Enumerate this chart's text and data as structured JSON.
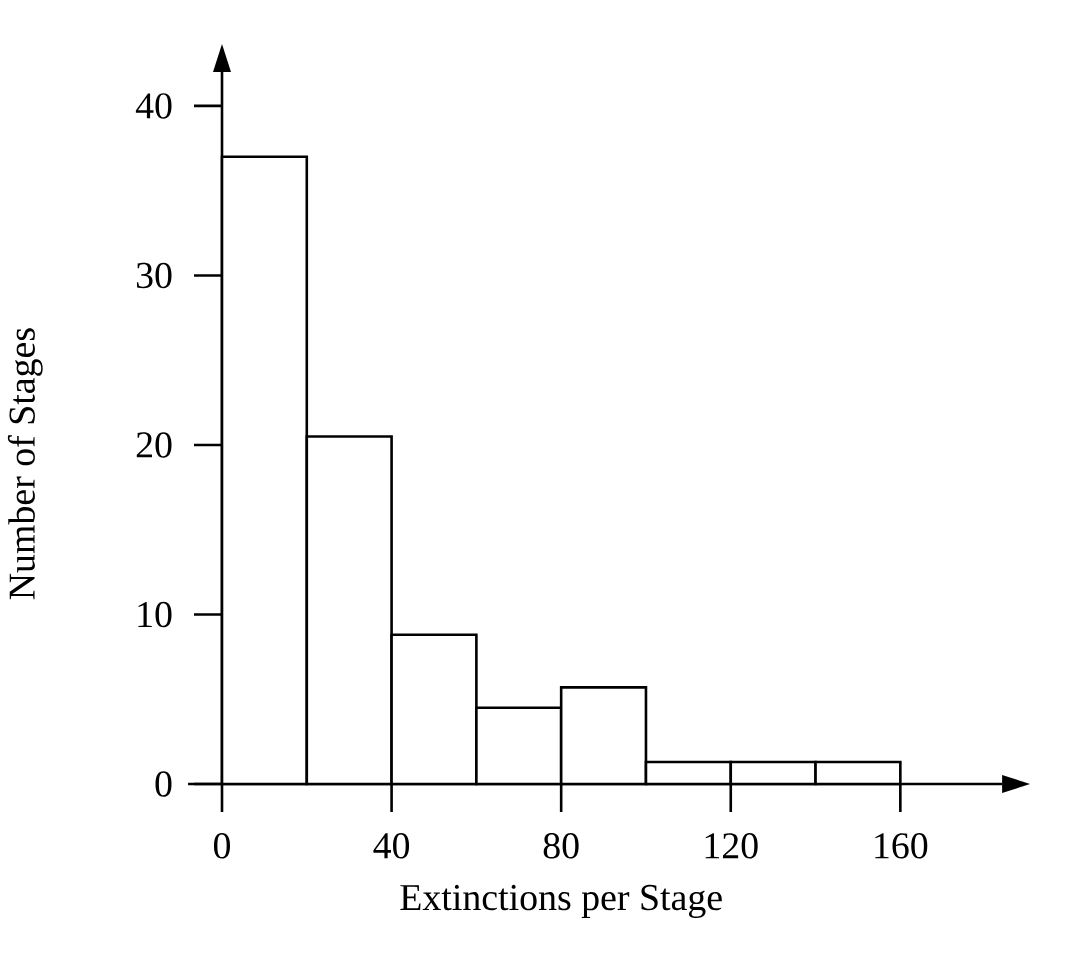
{
  "chart_data": {
    "type": "histogram",
    "xlabel": "Extinctions per Stage",
    "ylabel": "Number of Stages",
    "bins": [
      0,
      20,
      40,
      60,
      80,
      100,
      120,
      140,
      160
    ],
    "values": [
      37,
      20.5,
      8.8,
      4.5,
      5.7,
      1.3,
      1.3,
      1.3
    ],
    "color": "#ffffff",
    "xlim": [
      -8,
      184
    ],
    "ylim": [
      0,
      42
    ],
    "xticks": [
      0,
      40,
      80,
      120,
      160
    ],
    "yticks": [
      0,
      10,
      20,
      30,
      40
    ],
    "grid": false
  }
}
